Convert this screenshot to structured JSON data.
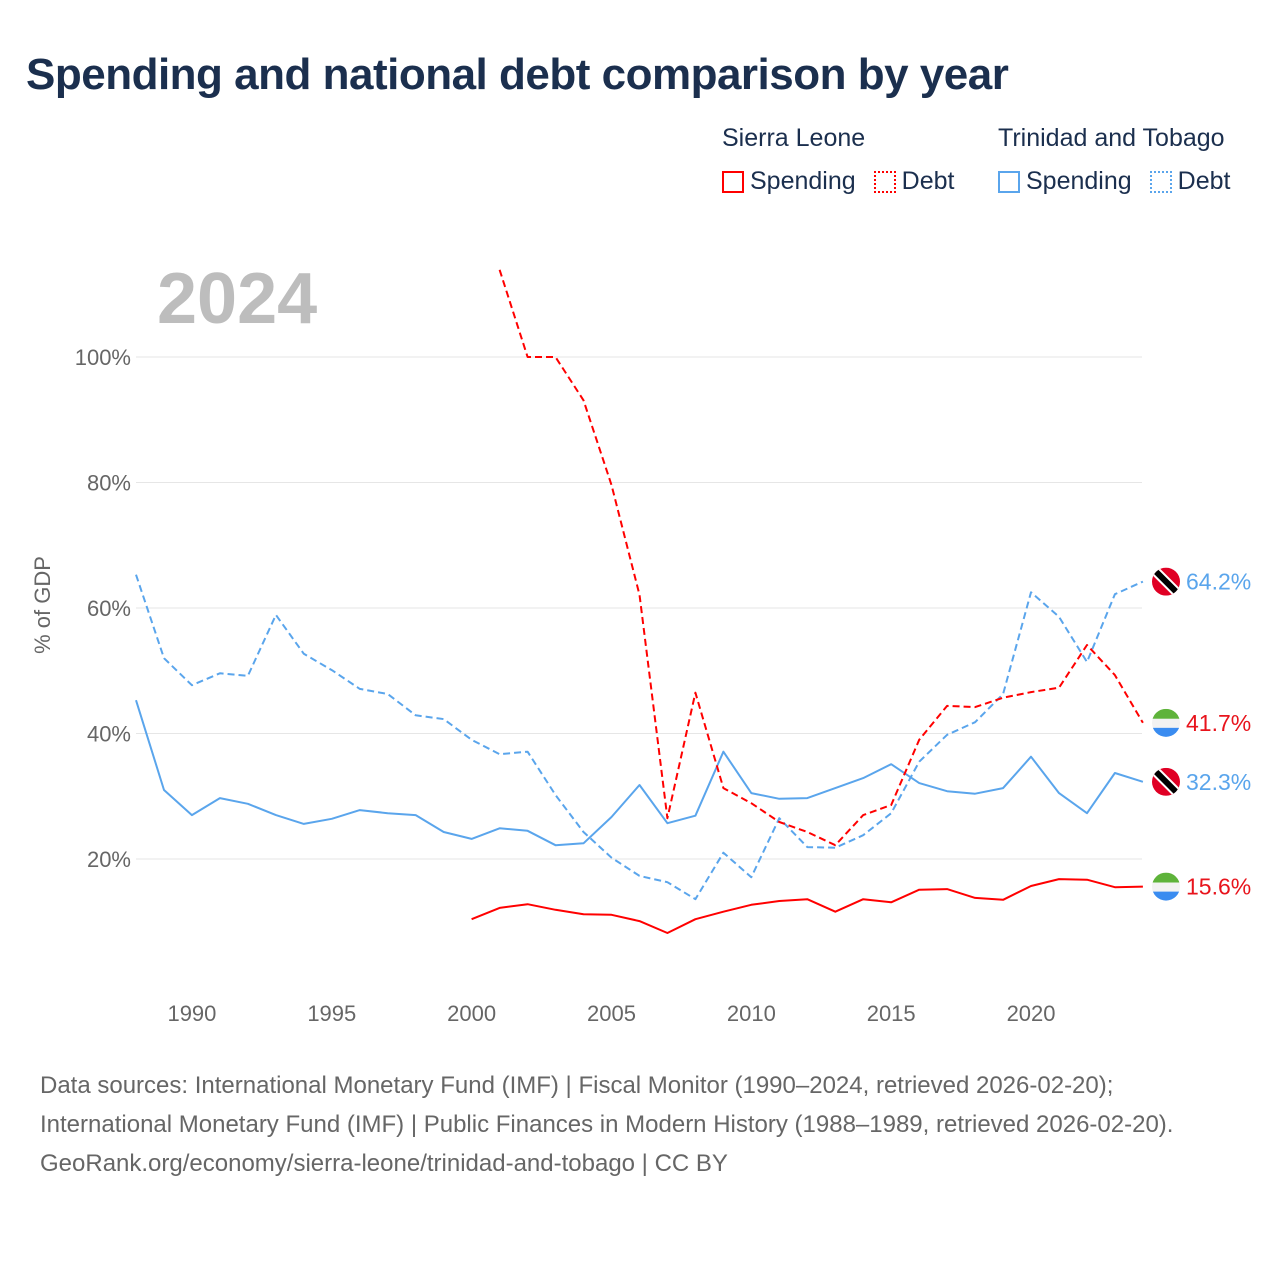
{
  "title": "Spending and national debt comparison by year",
  "legend": {
    "groups": [
      {
        "country": "Sierra Leone",
        "items": [
          "Spending",
          "Debt"
        ],
        "color": "#ff0000"
      },
      {
        "country": "Trinidad and Tobago",
        "items": [
          "Spending",
          "Debt"
        ],
        "color": "#5aa5ec"
      }
    ]
  },
  "chart_data": {
    "type": "line",
    "year_label": "2024",
    "ylabel": "% of GDP",
    "xlim": [
      1988,
      2024
    ],
    "ylim": [
      0,
      115
    ],
    "grid": true,
    "x_ticks": [
      "1990",
      "1995",
      "2000",
      "2005",
      "2010",
      "2015",
      "2020"
    ],
    "x_tick_values": [
      1990,
      1995,
      2000,
      2005,
      2010,
      2015,
      2020
    ],
    "y_ticks": [
      "20%",
      "40%",
      "60%",
      "80%",
      "100%"
    ],
    "y_tick_values": [
      20,
      40,
      60,
      80,
      100
    ],
    "series": [
      {
        "name": "Trinidad and Tobago Debt",
        "color": "#5aa5ec",
        "dashed": true,
        "start": 1988,
        "end_label": "64.2%",
        "flag": "tt",
        "values": [
          65.3,
          52.0,
          47.7,
          49.6,
          49.2,
          58.9,
          52.7,
          50.1,
          47.1,
          46.3,
          42.9,
          42.3,
          39.0,
          36.7,
          37.1,
          30.2,
          24.3,
          20.2,
          17.3,
          16.3,
          13.6,
          21.0,
          17.1,
          26.5,
          21.9,
          21.8,
          23.8,
          27.3,
          35.5,
          39.8,
          41.8,
          46.3,
          62.5,
          58.6,
          51.4,
          62.2,
          64.2
        ]
      },
      {
        "name": "Trinidad and Tobago Spending",
        "color": "#5aa5ec",
        "dashed": false,
        "start": 1988,
        "end_label": "32.3%",
        "flag": "tt",
        "values": [
          45.3,
          31.0,
          27.0,
          29.7,
          28.8,
          27.0,
          25.6,
          26.4,
          27.8,
          27.3,
          27.0,
          24.3,
          23.2,
          24.9,
          24.5,
          22.2,
          22.5,
          26.7,
          31.8,
          25.7,
          26.9,
          37.1,
          30.5,
          29.6,
          29.7,
          31.3,
          32.9,
          35.1,
          32.1,
          30.8,
          30.4,
          31.3,
          36.3,
          30.5,
          27.3,
          33.7,
          32.3
        ]
      },
      {
        "name": "Sierra Leone Debt",
        "color": "#ff0000",
        "dashed": true,
        "start": 2001,
        "end_label": "41.7%",
        "flag": "sl",
        "values": [
          113.9,
          100,
          100,
          93.1,
          79.6,
          62.1,
          26.5,
          46.5,
          31.3,
          28.9,
          25.9,
          24.3,
          22.2,
          27.0,
          28.6,
          39.0,
          44.4,
          44.2,
          45.7,
          46.6,
          47.3,
          54.1,
          49.3,
          41.7
        ]
      },
      {
        "name": "Sierra Leone Spending",
        "color": "#ff0000",
        "dashed": false,
        "start": 2000,
        "end_label": "15.6%",
        "flag": "sl",
        "values": [
          10.4,
          12.2,
          12.8,
          11.9,
          11.2,
          11.1,
          10.1,
          8.2,
          10.4,
          11.6,
          12.7,
          13.3,
          13.6,
          11.6,
          13.6,
          13.1,
          15.1,
          15.2,
          13.8,
          13.5,
          15.7,
          16.8,
          16.7,
          15.5,
          15.6
        ]
      }
    ]
  },
  "footer": {
    "sources": "Data sources: International Monetary Fund (IMF) | Fiscal Monitor (1990–2024, retrieved 2026-02-20); International Monetary Fund (IMF) | Public Finances in Modern History (1988–1989, retrieved 2026-02-20).",
    "credit": "GeoRank.org/economy/sierra-leone/trinidad-and-tobago | CC BY"
  }
}
